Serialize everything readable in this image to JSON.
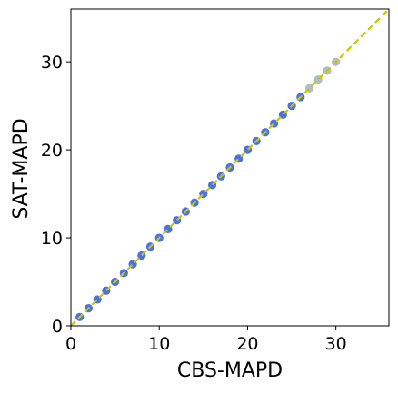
{
  "chart_data": {
    "type": "scatter",
    "title": "",
    "xlabel": "CBS-MAPD",
    "ylabel": "SAT-MAPD",
    "xlim": [
      0,
      36
    ],
    "ylim": [
      0,
      36
    ],
    "xticks": [
      "0",
      "10",
      "20",
      "30"
    ],
    "yticks": [
      "0",
      "10",
      "20",
      "30"
    ],
    "grid": false,
    "legend": "none",
    "points": [
      {
        "x": 1,
        "y": 1
      },
      {
        "x": 2,
        "y": 2
      },
      {
        "x": 3,
        "y": 3
      },
      {
        "x": 4,
        "y": 4
      },
      {
        "x": 5,
        "y": 5
      },
      {
        "x": 6,
        "y": 6
      },
      {
        "x": 7,
        "y": 7
      },
      {
        "x": 8,
        "y": 8
      },
      {
        "x": 9,
        "y": 9
      },
      {
        "x": 10,
        "y": 10
      },
      {
        "x": 11,
        "y": 11
      },
      {
        "x": 12,
        "y": 12
      },
      {
        "x": 13,
        "y": 13
      },
      {
        "x": 14,
        "y": 14
      },
      {
        "x": 15,
        "y": 15
      },
      {
        "x": 16,
        "y": 16
      },
      {
        "x": 17,
        "y": 17
      },
      {
        "x": 18,
        "y": 18
      },
      {
        "x": 19,
        "y": 19
      },
      {
        "x": 20,
        "y": 20
      },
      {
        "x": 21,
        "y": 21
      },
      {
        "x": 22,
        "y": 22
      },
      {
        "x": 23,
        "y": 23
      },
      {
        "x": 24,
        "y": 24
      },
      {
        "x": 25,
        "y": 25
      },
      {
        "x": 26,
        "y": 26
      },
      {
        "x": 27,
        "y": 27
      },
      {
        "x": 28,
        "y": 28
      },
      {
        "x": 29,
        "y": 29
      },
      {
        "x": 30,
        "y": 30
      }
    ],
    "reference_line": {
      "x": [
        0,
        36
      ],
      "y": [
        0,
        36
      ],
      "style": "dashed"
    },
    "colors": {
      "points": "#4169e1",
      "points_light": "#9fb0c8",
      "reference_line": "#c8c800",
      "axes": "#000000"
    }
  }
}
